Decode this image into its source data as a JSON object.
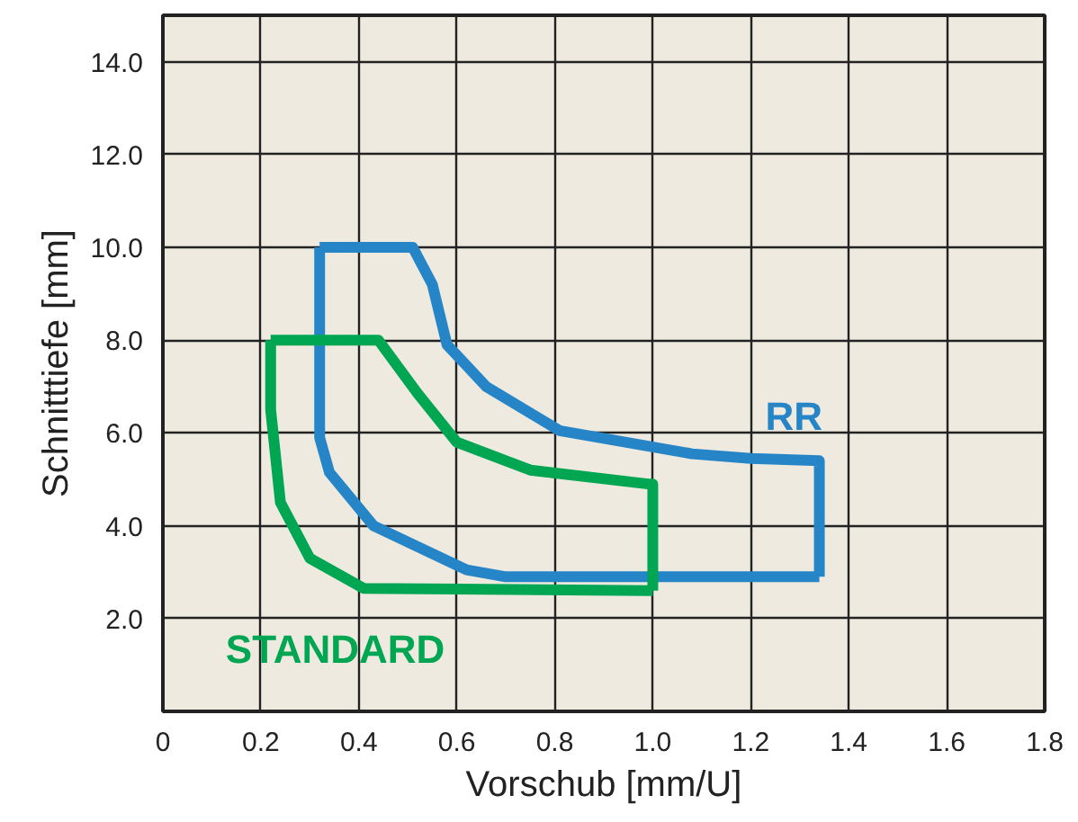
{
  "chart_data": {
    "type": "line",
    "xlabel": "Vorschub [mm/U]",
    "ylabel": "Schnitttiefe [mm]",
    "xlim": [
      0,
      1.8
    ],
    "ylim": [
      0,
      15
    ],
    "xticks": [
      0,
      0.2,
      0.4,
      0.6,
      0.8,
      {
        "value": 1,
        "label": "1.0"
      },
      1.2,
      1.4,
      1.6,
      1.8
    ],
    "yticks": [
      {
        "value": 2,
        "label": "2.0"
      },
      {
        "value": 4,
        "label": "4.0"
      },
      {
        "value": 6,
        "label": "6.0"
      },
      {
        "value": 8,
        "label": "8.0"
      },
      {
        "value": 10,
        "label": "10.0"
      },
      {
        "value": 12,
        "label": "12.0"
      },
      {
        "value": 14,
        "label": "14.0"
      }
    ],
    "grid": true,
    "marker": "none",
    "line_style": "solid",
    "series": [
      {
        "name": "RR",
        "color": "#2585c7",
        "x": [
          0.32,
          0.51,
          0.55,
          0.58,
          0.66,
          0.81,
          1.08,
          1.2,
          1.34,
          1.34
        ],
        "values": [
          10.0,
          10.0,
          9.2,
          7.9,
          7.0,
          6.05,
          5.55,
          5.45,
          5.4,
          2.9
        ]
      },
      {
        "color": "#2585c7",
        "x": [
          0.32,
          0.32,
          0.34,
          0.43,
          0.62,
          0.7,
          1.34
        ],
        "values": [
          10.0,
          5.9,
          5.15,
          4.0,
          3.05,
          2.9,
          2.9
        ]
      },
      {
        "name": "STANDARD",
        "color": "#00a651",
        "x": [
          0.22,
          0.44,
          0.52,
          0.6,
          0.75,
          0.99,
          1.0,
          1.0
        ],
        "values": [
          8.0,
          8.0,
          6.85,
          5.8,
          5.2,
          4.9,
          4.9,
          2.6
        ]
      },
      {
        "color": "#00a651",
        "x": [
          0.22,
          0.22,
          0.23,
          0.24,
          0.3,
          0.41,
          1.0
        ],
        "values": [
          8.0,
          6.5,
          5.5,
          4.5,
          3.3,
          2.65,
          2.6
        ]
      }
    ]
  }
}
